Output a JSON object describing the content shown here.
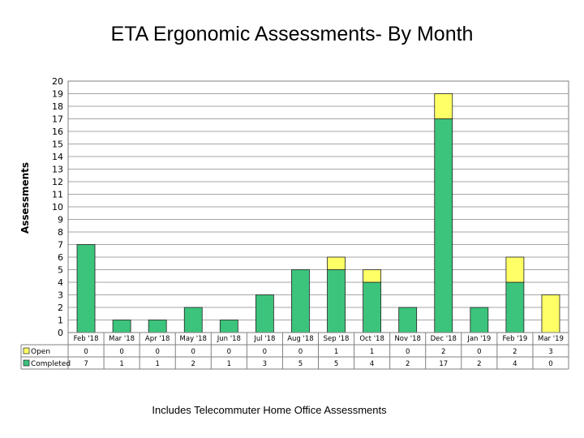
{
  "chart_data": {
    "type": "bar",
    "stacked": true,
    "title": "ETA Ergonomic Assessments- By Month",
    "ylabel": "Assessments",
    "xlabel": "",
    "ylim": [
      0,
      20
    ],
    "yticks": [
      "0",
      "1",
      "2",
      "3",
      "4",
      "5",
      "6",
      "7",
      "8",
      "9",
      "10",
      "11",
      "12",
      "13",
      "14",
      "15",
      "16",
      "17",
      "18",
      "19",
      "20"
    ],
    "grid": true,
    "legend_placement": "data-table-left",
    "categories": [
      "Feb '18",
      "Mar '18",
      "Apr '18",
      "May '18",
      "Jun '18",
      "Jul '18",
      "Aug '18",
      "Sep '18",
      "Oct '18",
      "Nov '18",
      "Dec '18",
      "Jan '19",
      "Feb '19",
      "Mar '19"
    ],
    "series": [
      {
        "name": "Open",
        "color": "#ffff66",
        "values": [
          0,
          0,
          0,
          0,
          0,
          0,
          0,
          1,
          1,
          0,
          2,
          0,
          2,
          3
        ]
      },
      {
        "name": "Completed",
        "color": "#3cc47c",
        "values": [
          7,
          1,
          1,
          2,
          1,
          3,
          5,
          5,
          4,
          2,
          17,
          2,
          4,
          0
        ]
      }
    ],
    "annotation": "Includes Telecommuter Home Office Assessments"
  }
}
